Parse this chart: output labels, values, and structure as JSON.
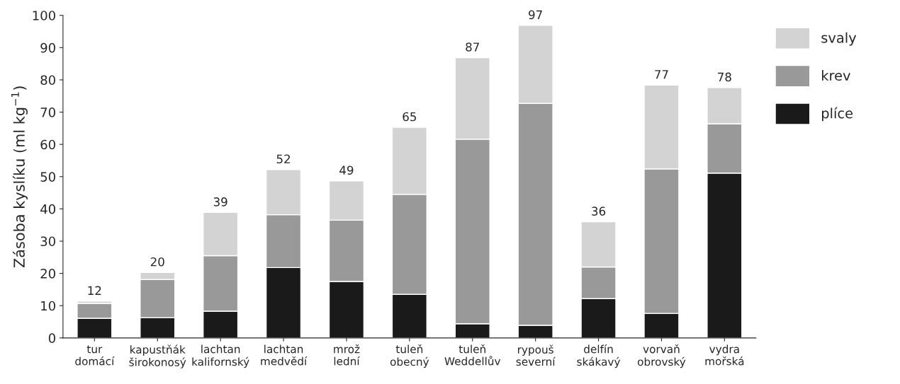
{
  "chart_data": {
    "type": "bar",
    "stacked": true,
    "ylabel": "Zásoba kyslíku (ml kg$^{−1}$)",
    "categories": [
      "tur\ndomácí",
      "kapustňák\nširokonosý",
      "lachtan\nkalifornský",
      "lachtan\nmedvědí",
      "mrož\nlední",
      "tuleň\nobecný",
      "tuleň\nWeddellův",
      "rypouš\nseverní",
      "delfín\nskákavý",
      "vorvaň\nobrovský",
      "vydra\nmořská"
    ],
    "series": [
      {
        "name": "plíce",
        "color": "#1a1a1a",
        "values": [
          6.1,
          6.3,
          8.3,
          21.8,
          17.5,
          13.5,
          4.4,
          3.9,
          12.2,
          7.6,
          51.1
        ]
      },
      {
        "name": "krev",
        "color": "#999999",
        "values": [
          4.6,
          11.8,
          17.2,
          16.4,
          19.0,
          31.0,
          57.2,
          68.8,
          9.8,
          44.8,
          15.3
        ]
      },
      {
        "name": "svaly",
        "color": "#d3d3d3",
        "values": [
          0.7,
          2.2,
          13.4,
          14.0,
          12.2,
          20.8,
          25.3,
          24.2,
          14.0,
          26.0,
          11.2
        ]
      }
    ],
    "totals": [
      "12",
      "20",
      "39",
      "52",
      "49",
      "65",
      "87",
      "97",
      "36",
      "77",
      "78"
    ],
    "ylim": [
      0,
      100
    ],
    "yticks": [
      0,
      10,
      20,
      30,
      40,
      50,
      60,
      70,
      80,
      90,
      100
    ],
    "grid": false,
    "legend": "top right"
  }
}
